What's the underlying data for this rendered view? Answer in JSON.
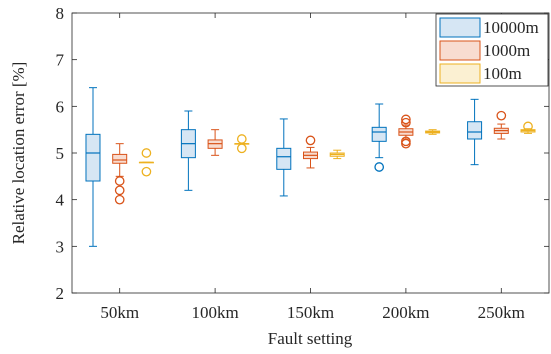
{
  "chart_data": {
    "type": "box",
    "xlabel": "Fault setting",
    "ylabel": "Relative location error [%]",
    "ylim": [
      2,
      8
    ],
    "yticks": [
      2,
      3,
      4,
      5,
      6,
      7,
      8
    ],
    "categories": [
      "50km",
      "100km",
      "150km",
      "200km",
      "250km"
    ],
    "grid": false,
    "legend_position": "top-right",
    "series": [
      {
        "name": "10000m",
        "color": "#0072BD",
        "fill": "#d6e6f4",
        "boxes": [
          {
            "whisker_low": 3.0,
            "q1": 4.4,
            "median": 5.0,
            "q3": 5.4,
            "whisker_high": 6.4,
            "outliers": []
          },
          {
            "whisker_low": 4.2,
            "q1": 4.9,
            "median": 5.2,
            "q3": 5.5,
            "whisker_high": 5.9,
            "outliers": []
          },
          {
            "whisker_low": 4.08,
            "q1": 4.65,
            "median": 4.92,
            "q3": 5.1,
            "whisker_high": 5.73,
            "outliers": []
          },
          {
            "whisker_low": 4.9,
            "q1": 5.25,
            "median": 5.45,
            "q3": 5.55,
            "whisker_high": 6.05,
            "outliers": [
              4.7
            ]
          },
          {
            "whisker_low": 4.75,
            "q1": 5.3,
            "median": 5.45,
            "q3": 5.67,
            "whisker_high": 6.15,
            "outliers": []
          }
        ]
      },
      {
        "name": "1000m",
        "color": "#D95319",
        "fill": "#f8dcd0",
        "boxes": [
          {
            "whisker_low": 4.5,
            "q1": 4.78,
            "median": 4.85,
            "q3": 4.97,
            "whisker_high": 5.2,
            "outliers": [
              4.4,
              4.2,
              4.0
            ]
          },
          {
            "whisker_low": 4.95,
            "q1": 5.1,
            "median": 5.2,
            "q3": 5.28,
            "whisker_high": 5.5,
            "outliers": []
          },
          {
            "whisker_low": 4.68,
            "q1": 4.88,
            "median": 4.95,
            "q3": 5.02,
            "whisker_high": 5.12,
            "outliers": [
              5.27
            ]
          },
          {
            "whisker_low": 5.3,
            "q1": 5.38,
            "median": 5.45,
            "q3": 5.52,
            "whisker_high": 5.6,
            "outliers": [
              5.72,
              5.65,
              5.25,
              5.2
            ]
          },
          {
            "whisker_low": 5.3,
            "q1": 5.42,
            "median": 5.48,
            "q3": 5.53,
            "whisker_high": 5.62,
            "outliers": [
              5.8
            ]
          }
        ]
      },
      {
        "name": "100m",
        "color": "#EDB120",
        "fill": "#fbf0d2",
        "boxes": [
          {
            "whisker_low": 4.8,
            "q1": 4.8,
            "median": 4.8,
            "q3": 4.8,
            "whisker_high": 4.8,
            "outliers": [
              5.0,
              4.6
            ]
          },
          {
            "whisker_low": 5.2,
            "q1": 5.2,
            "median": 5.2,
            "q3": 5.2,
            "whisker_high": 5.2,
            "outliers": [
              5.3,
              5.1
            ]
          },
          {
            "whisker_low": 4.88,
            "q1": 4.93,
            "median": 4.97,
            "q3": 5.0,
            "whisker_high": 5.06,
            "outliers": []
          },
          {
            "whisker_low": 5.4,
            "q1": 5.43,
            "median": 5.45,
            "q3": 5.47,
            "whisker_high": 5.5,
            "outliers": []
          },
          {
            "whisker_low": 5.42,
            "q1": 5.45,
            "median": 5.48,
            "q3": 5.5,
            "whisker_high": 5.52,
            "outliers": [
              5.57
            ]
          }
        ]
      }
    ]
  }
}
